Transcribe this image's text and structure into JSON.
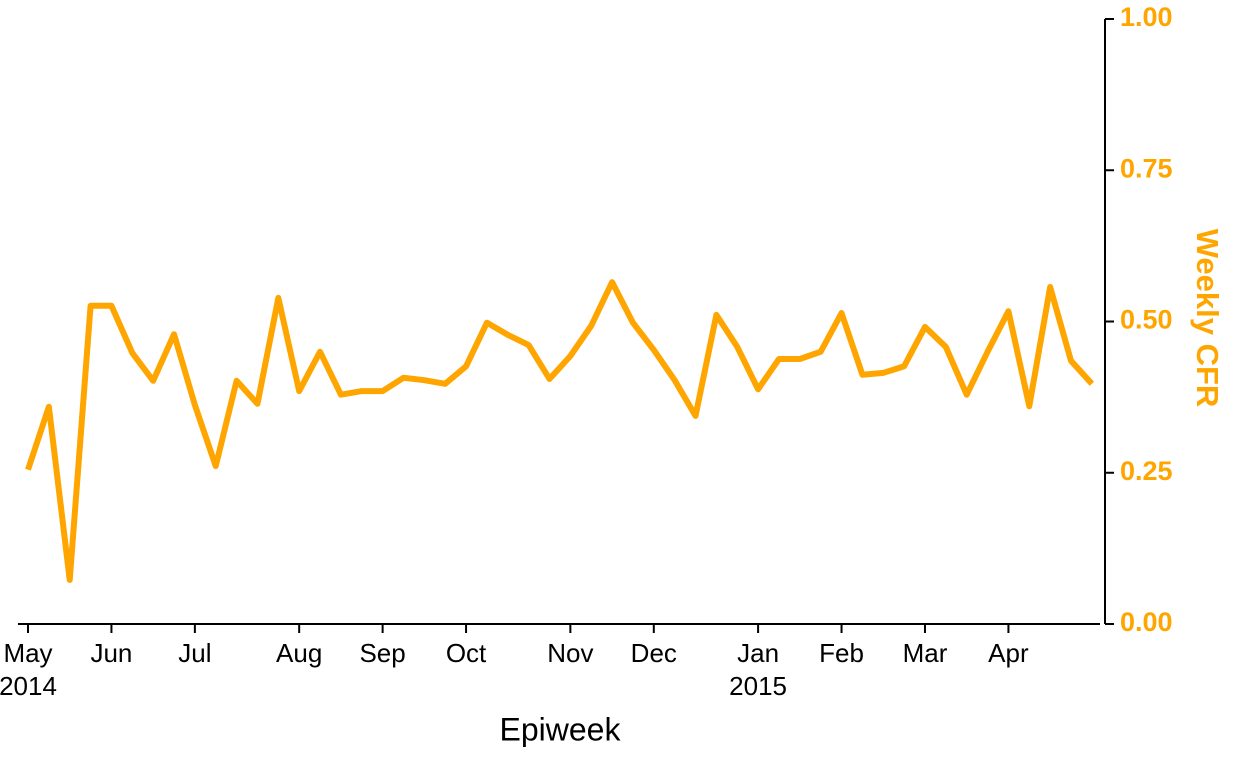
{
  "chart_data": {
    "type": "line",
    "x_label": "Epiweek",
    "y2_label": "Weekly CFR",
    "categories": [
      "May\n2014",
      null,
      null,
      null,
      "Jun",
      null,
      null,
      null,
      "Jul",
      null,
      null,
      null,
      null,
      "Aug",
      null,
      null,
      null,
      "Sep",
      null,
      null,
      null,
      "Oct",
      null,
      null,
      null,
      null,
      "Nov",
      null,
      null,
      null,
      "Dec",
      null,
      null,
      null,
      null,
      "Jan\n2015",
      null,
      null,
      null,
      "Feb",
      null,
      null,
      null,
      "Mar",
      null,
      null,
      null,
      "Apr",
      null,
      null,
      null,
      null
    ],
    "series": [
      {
        "color": "#FFA500",
        "axis": "y2",
        "values": [
          0.255,
          0.359,
          0.073,
          0.526,
          0.526,
          0.448,
          0.402,
          0.479,
          0.362,
          0.261,
          0.402,
          0.364,
          0.539,
          0.385,
          0.45,
          0.379,
          0.385,
          0.385,
          0.407,
          0.403,
          0.397,
          0.426,
          0.498,
          0.478,
          0.461,
          0.405,
          0.443,
          0.493,
          0.565,
          0.498,
          0.453,
          0.403,
          0.344,
          0.511,
          0.458,
          0.388,
          0.438,
          0.438,
          0.45,
          0.514,
          0.412,
          0.415,
          0.426,
          0.491,
          0.458,
          0.379,
          0.45,
          0.517,
          0.36,
          0.557,
          0.435,
          0.397
        ]
      }
    ],
    "y2lim": [
      0,
      1
    ],
    "y2ticks": [
      {
        "value": 0,
        "label": "0.00"
      },
      {
        "value": 0.25,
        "label": "0.25"
      },
      {
        "value": 0.5,
        "label": "0.50"
      },
      {
        "value": 0.75,
        "label": "0.75"
      },
      {
        "value": 1,
        "label": "1.00"
      }
    ],
    "axis_color": "#FFA500"
  }
}
